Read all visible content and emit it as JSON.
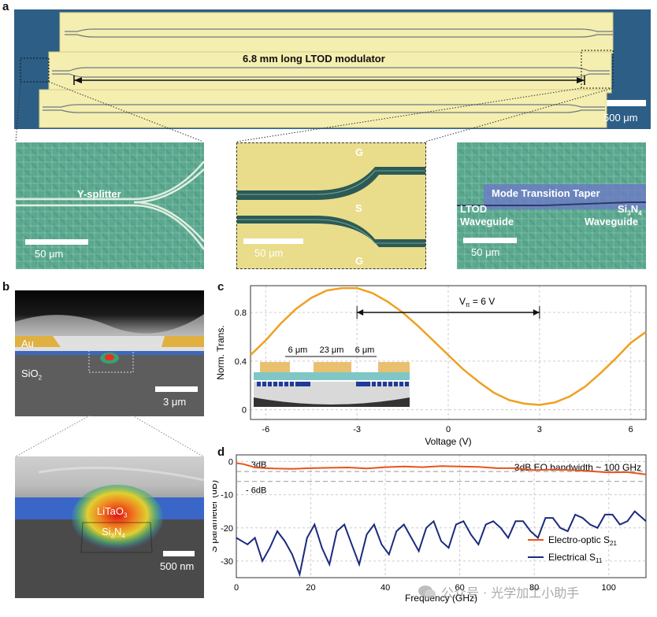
{
  "panels": {
    "a": "a",
    "b": "b",
    "c": "c",
    "d": "d"
  },
  "panel_a": {
    "title": "6.8 mm long LTOD modulator",
    "scale_main": "500 μm",
    "inset1_label": "Y-splitter",
    "inset1_scale": "50 μm",
    "inset2_g_top": "G",
    "inset2_s": "S",
    "inset2_g_bottom": "G",
    "inset2_scale": "50 μm",
    "inset3_taper": "Mode Transition Taper",
    "inset3_left_1": "LTOD",
    "inset3_left_2": "Waveguide",
    "inset3_right_1_main": "Si",
    "inset3_right_1_sub1": "3",
    "inset3_right_1_mid": "N",
    "inset3_right_1_sub2": "4",
    "inset3_right_2": "Waveguide",
    "inset3_scale": "50 μm"
  },
  "panel_b": {
    "au": "Au",
    "sio2_main": "SiO",
    "sio2_sub": "2",
    "scale_top": "3 μm",
    "ltao_main": "LiTaO",
    "ltao_sub": "3",
    "sin_main": "Si",
    "sin_sub1": "3",
    "sin_mid": "N",
    "sin_sub2": "4",
    "scale_bottom": "500 nm"
  },
  "chart_data": [
    {
      "type": "line",
      "panel": "c",
      "title": "",
      "xlabel": "Voltage (V)",
      "ylabel": "Norm. Trans.",
      "xlim": [
        -6.5,
        6.5
      ],
      "ylim": [
        -0.08,
        1.02
      ],
      "xticks": [
        -6,
        -3,
        0,
        3,
        6
      ],
      "yticks": [
        0,
        0.4,
        0.8
      ],
      "grid": true,
      "series": [
        {
          "color": "#f0a020",
          "x": [
            -6.5,
            -6,
            -5.5,
            -5,
            -4.5,
            -4,
            -3.5,
            -3,
            -2.5,
            -2,
            -1.5,
            -1,
            -0.5,
            0,
            0.5,
            1,
            1.5,
            2,
            2.5,
            3,
            3.5,
            4,
            4.5,
            5,
            5.5,
            6,
            6.5
          ],
          "y": [
            0.45,
            0.57,
            0.71,
            0.83,
            0.92,
            0.98,
            1.0,
            1.0,
            0.96,
            0.89,
            0.8,
            0.69,
            0.57,
            0.45,
            0.33,
            0.23,
            0.14,
            0.08,
            0.05,
            0.04,
            0.06,
            0.11,
            0.19,
            0.3,
            0.42,
            0.55,
            0.64
          ]
        }
      ],
      "annotation": {
        "label_main": "V",
        "label_sub": "π",
        "label_rest": " = 6 V",
        "from": -3,
        "to": 3,
        "y": 0.8
      },
      "inset": {
        "gap1": "6 μm",
        "signal": "23 μm",
        "gap2": "6 μm"
      }
    },
    {
      "type": "line",
      "panel": "d",
      "title": "",
      "xlabel": "Frequency (GHz)",
      "ylabel": "S parameter (dB)",
      "xlim": [
        0,
        110
      ],
      "ylim": [
        -35,
        2
      ],
      "xticks": [
        0,
        20,
        40,
        60,
        80,
        100
      ],
      "yticks": [
        0,
        -10,
        -20,
        -30
      ],
      "grid": true,
      "annotation": "3dB EO bandwidth ~ 100 GHz",
      "ref_lines": [
        {
          "label": "- 3dB",
          "y": -3
        },
        {
          "label": "- 6dB",
          "y": -6
        }
      ],
      "legend": "bottom-right",
      "series": [
        {
          "name_main": "Electro-optic S",
          "name_sub": "21",
          "color": "#e8541a",
          "x": [
            0,
            2,
            5,
            8,
            10,
            15,
            20,
            25,
            30,
            35,
            40,
            45,
            50,
            55,
            60,
            65,
            70,
            75,
            80,
            85,
            90,
            95,
            100,
            105,
            110
          ],
          "y": [
            -0.5,
            -0.8,
            -1.8,
            -2.0,
            -2.1,
            -2.2,
            -2.0,
            -1.9,
            -1.8,
            -2.1,
            -1.7,
            -1.5,
            -1.7,
            -1.4,
            -1.5,
            -1.6,
            -2.0,
            -2.0,
            -2.6,
            -2.4,
            -2.6,
            -2.9,
            -3.3,
            -3.2,
            -3.9
          ]
        },
        {
          "name_main": "Electrical S",
          "name_sub": "11",
          "color": "#1a2a7c",
          "x": [
            0,
            3,
            5,
            7,
            9,
            11,
            13,
            15,
            17,
            19,
            21,
            23,
            25,
            27,
            29,
            31,
            33,
            35,
            37,
            39,
            41,
            43,
            45,
            47,
            49,
            51,
            53,
            55,
            57,
            59,
            61,
            63,
            65,
            67,
            69,
            71,
            73,
            75,
            77,
            79,
            81,
            83,
            85,
            87,
            89,
            91,
            93,
            95,
            97,
            99,
            101,
            103,
            105,
            107,
            109,
            110
          ],
          "y": [
            -23,
            -25,
            -23,
            -30,
            -26,
            -21,
            -24,
            -28,
            -34,
            -23,
            -19,
            -26,
            -31,
            -21,
            -19,
            -25,
            -31,
            -22,
            -19,
            -25,
            -28,
            -21,
            -19,
            -23,
            -27,
            -20,
            -18,
            -24,
            -26,
            -19,
            -18,
            -22,
            -25,
            -19,
            -18,
            -20,
            -23,
            -18,
            -18,
            -21,
            -23,
            -17,
            -17,
            -20,
            -21,
            -16,
            -17,
            -19,
            -20,
            -16,
            -16,
            -19,
            -18,
            -15,
            -17,
            -18
          ]
        }
      ]
    }
  ],
  "watermark": "公众号 · 光学加工小助手"
}
